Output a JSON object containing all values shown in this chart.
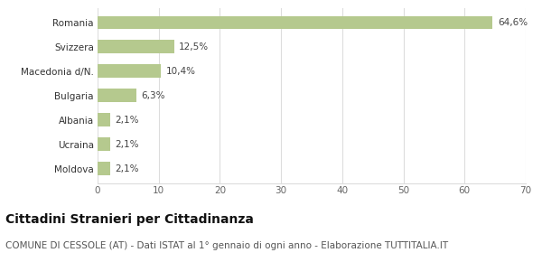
{
  "categories": [
    "Moldova",
    "Ucraina",
    "Albania",
    "Bulgaria",
    "Macedonia d/N.",
    "Svizzera",
    "Romania"
  ],
  "values": [
    2.1,
    2.1,
    2.1,
    6.3,
    10.4,
    12.5,
    64.6
  ],
  "labels": [
    "2,1%",
    "2,1%",
    "2,1%",
    "6,3%",
    "10,4%",
    "12,5%",
    "64,6%"
  ],
  "bar_color": "#b5c98e",
  "background_color": "#ffffff",
  "xlim": [
    0,
    70
  ],
  "xticks": [
    0,
    10,
    20,
    30,
    40,
    50,
    60,
    70
  ],
  "title": "Cittadini Stranieri per Cittadinanza",
  "subtitle": "COMUNE DI CESSOLE (AT) - Dati ISTAT al 1° gennaio di ogni anno - Elaborazione TUTTITALIA.IT",
  "title_fontsize": 10,
  "subtitle_fontsize": 7.5,
  "label_fontsize": 7.5,
  "tick_fontsize": 7.5,
  "ylabel_fontsize": 7.5,
  "grid_color": "#dddddd"
}
